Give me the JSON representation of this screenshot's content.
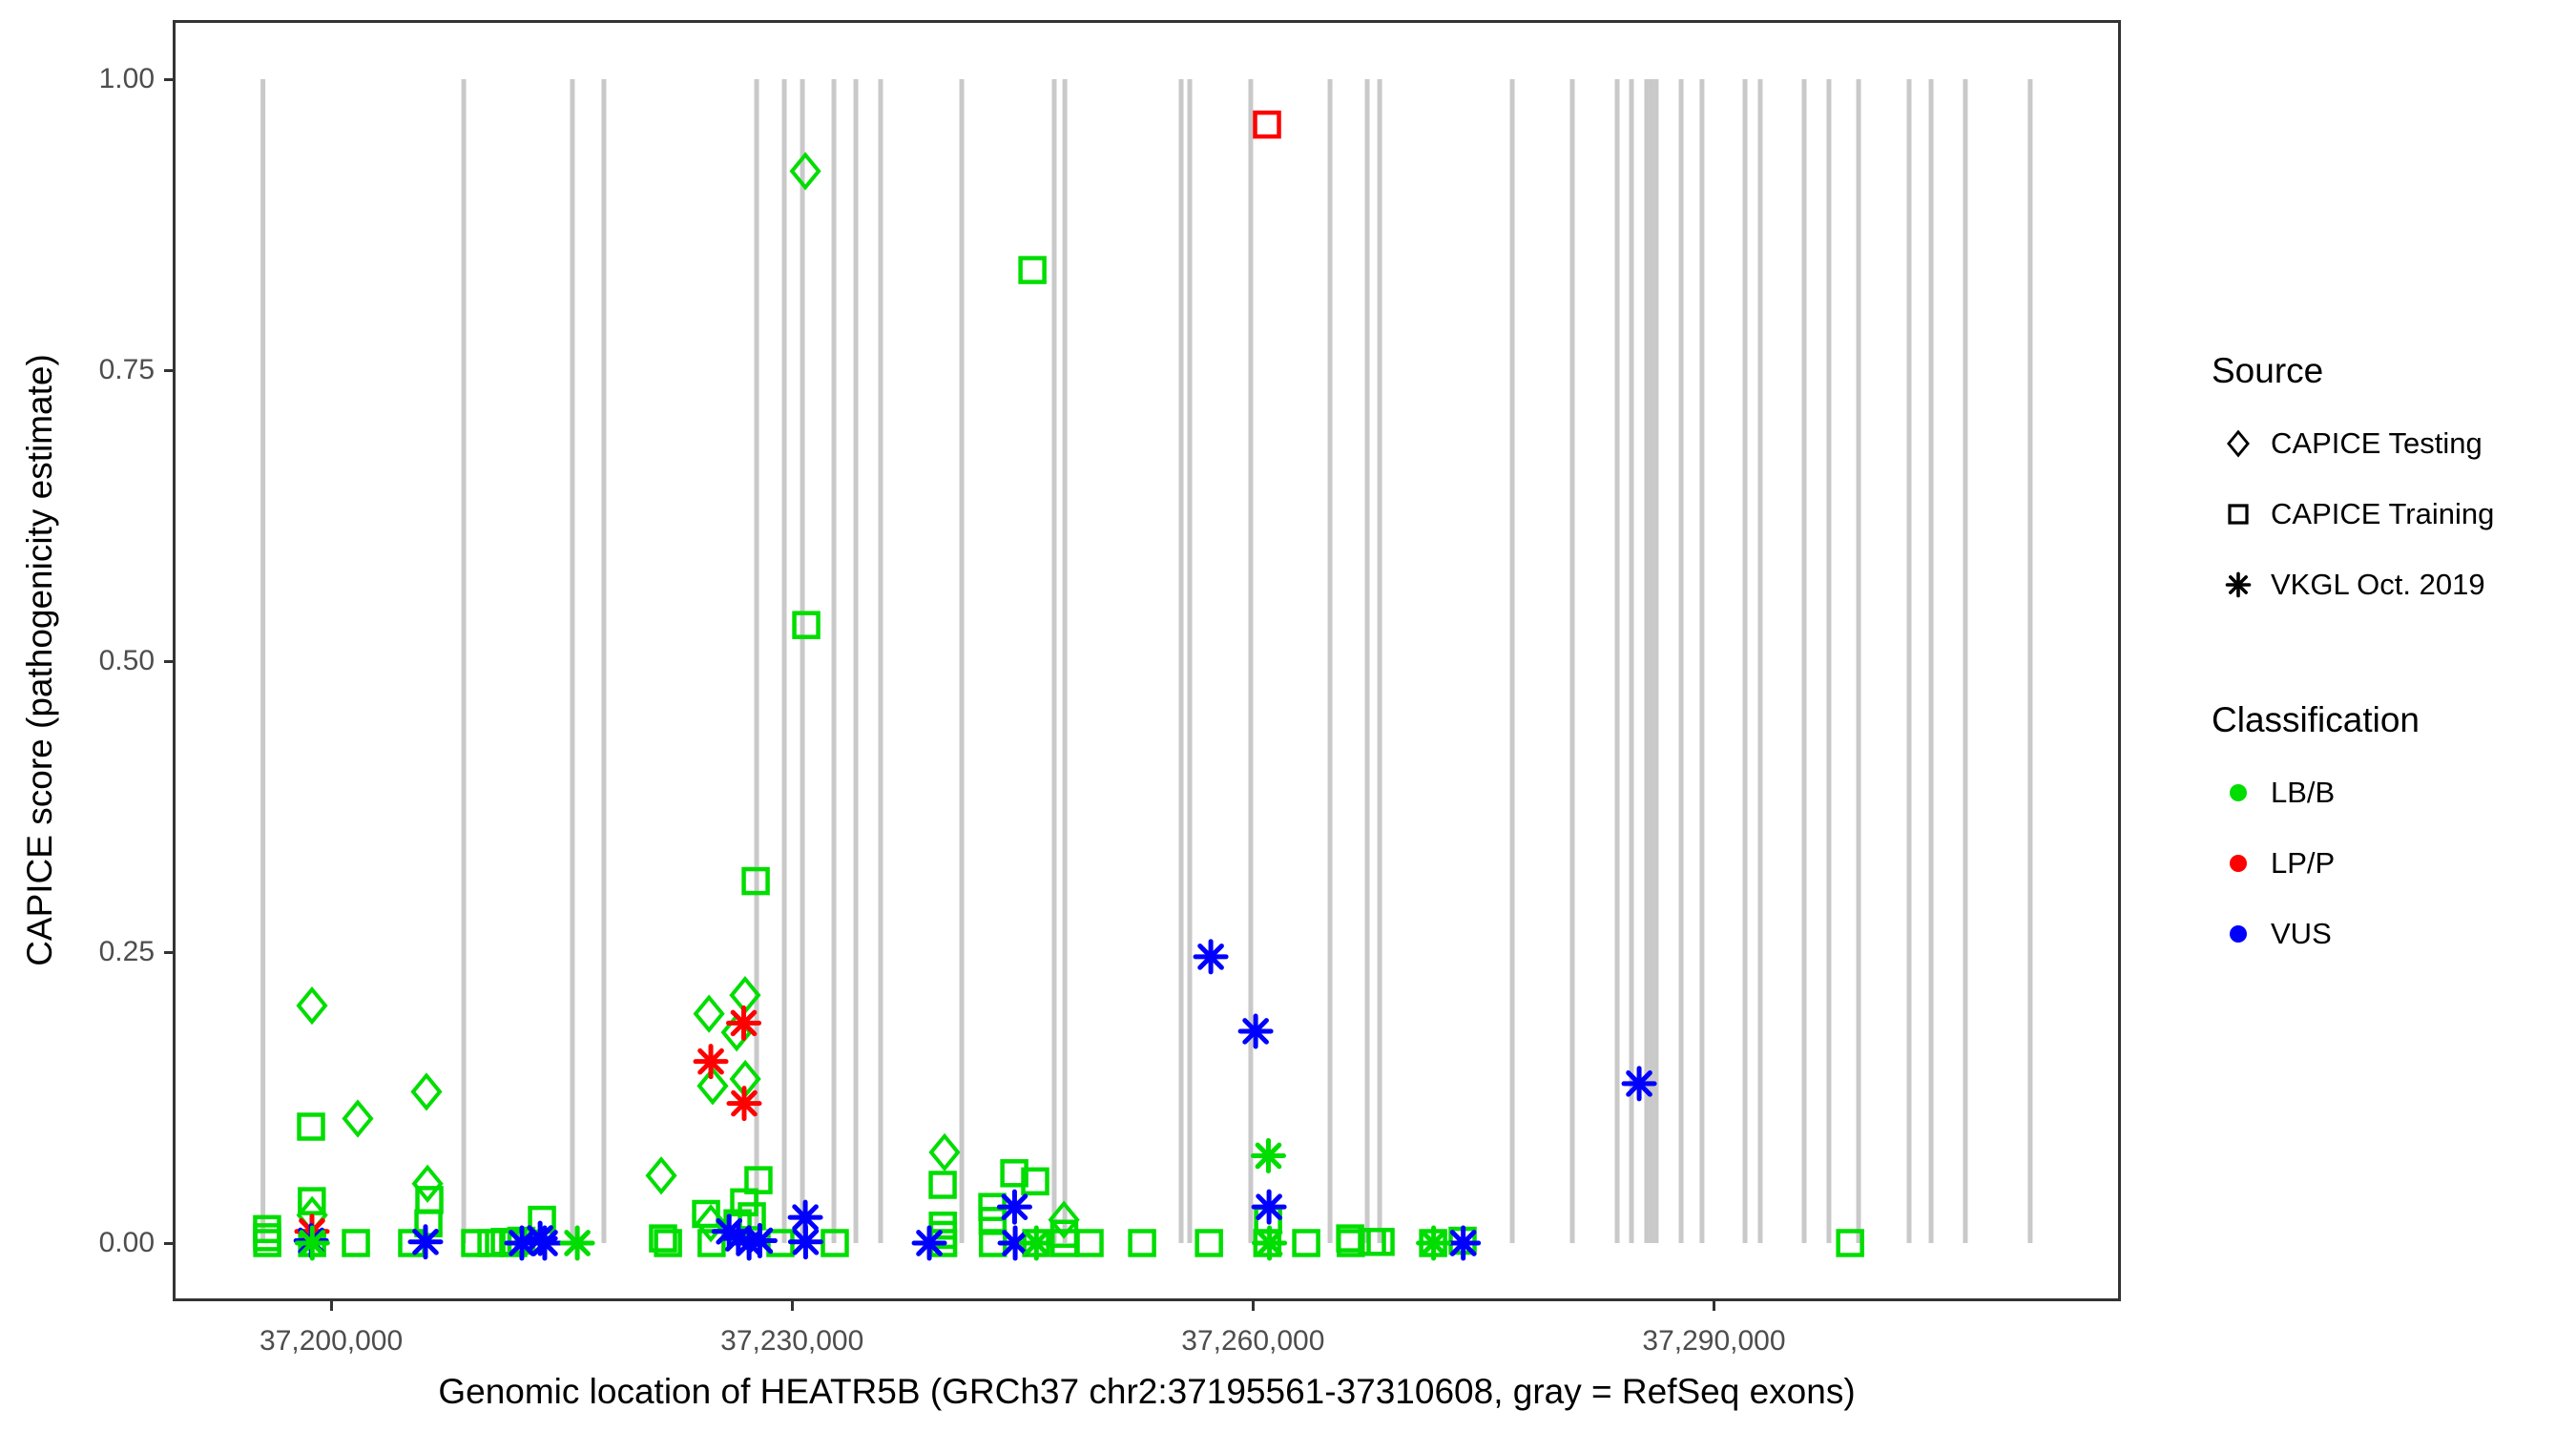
{
  "chart_data": {
    "type": "scatter",
    "title": "",
    "xlabel": "Genomic location of HEATR5B (GRCh37 chr2:37195561-37310608, gray = RefSeq exons)",
    "ylabel": "CAPICE score (pathogenicity estimate)",
    "x_domain": [
      37189809,
      37316360
    ],
    "y_domain": [
      0,
      1
    ],
    "grid": false,
    "x_ticks": [
      {
        "value": 37200000,
        "label": "37,200,000"
      },
      {
        "value": 37230000,
        "label": "37,230,000"
      },
      {
        "value": 37260000,
        "label": "37,260,000"
      },
      {
        "value": 37290000,
        "label": "37,290,000"
      }
    ],
    "y_ticks": [
      {
        "value": 0.0,
        "label": "0.00"
      },
      {
        "value": 0.25,
        "label": "0.25"
      },
      {
        "value": 0.5,
        "label": "0.50"
      },
      {
        "value": 0.75,
        "label": "0.75"
      },
      {
        "value": 1.0,
        "label": "1.00"
      }
    ],
    "exon_note": "gray vertical segments (RefSeq exons) span score 0 to 1",
    "exons": [
      37195560,
      37208630,
      37215700,
      37217750,
      37227690,
      37229490,
      37230670,
      37232720,
      37234150,
      37235760,
      37241040,
      37247060,
      37247750,
      37255320,
      37255880,
      37259850,
      37265010,
      37267430,
      37268240,
      37276870,
      37280780,
      37283700,
      37284630,
      37285620,
      37285930,
      37286240,
      37287860,
      37289220,
      37292020,
      37293010,
      37295870,
      37297480,
      37299410,
      37302700,
      37304130,
      37306360,
      37310580
    ],
    "point_keys": {
      "source": "legend Source group",
      "cls": "legend Classification group",
      "pos": "genomic position (bp)",
      "score": "CAPICE score"
    },
    "points": [
      {
        "source": "CAPICE Testing",
        "cls": "LB/B",
        "pos": 37198750,
        "score": 0.204
      },
      {
        "source": "CAPICE Testing",
        "cls": "LB/B",
        "pos": 37198760,
        "score": 0.024
      },
      {
        "source": "CAPICE Testing",
        "cls": "LB/B",
        "pos": 37201730,
        "score": 0.107
      },
      {
        "source": "CAPICE Testing",
        "cls": "LB/B",
        "pos": 37206200,
        "score": 0.13
      },
      {
        "source": "CAPICE Testing",
        "cls": "LB/B",
        "pos": 37206270,
        "score": 0.051
      },
      {
        "source": "CAPICE Testing",
        "cls": "LB/B",
        "pos": 37221480,
        "score": 0.058
      },
      {
        "source": "CAPICE Testing",
        "cls": "LB/B",
        "pos": 37224590,
        "score": 0.197
      },
      {
        "source": "CAPICE Testing",
        "cls": "LB/B",
        "pos": 37224830,
        "score": 0.135
      },
      {
        "source": "CAPICE Testing",
        "cls": "LB/B",
        "pos": 37224710,
        "score": 0.017
      },
      {
        "source": "CAPICE Testing",
        "cls": "LB/B",
        "pos": 37226390,
        "score": 0.181
      },
      {
        "source": "CAPICE Testing",
        "cls": "LB/B",
        "pos": 37226940,
        "score": 0.213
      },
      {
        "source": "CAPICE Testing",
        "cls": "LB/B",
        "pos": 37226950,
        "score": 0.141
      },
      {
        "source": "CAPICE Testing",
        "cls": "LB/B",
        "pos": 37230860,
        "score": 0.921
      },
      {
        "source": "CAPICE Testing",
        "cls": "LB/B",
        "pos": 37239920,
        "score": 0.078
      },
      {
        "source": "CAPICE Testing",
        "cls": "LB/B",
        "pos": 37247690,
        "score": 0.02
      },
      {
        "source": "CAPICE Training",
        "cls": "LB/B",
        "pos": 37195830,
        "score": 0.012
      },
      {
        "source": "CAPICE Training",
        "cls": "LB/B",
        "pos": 37195830,
        "score": 0.005
      },
      {
        "source": "CAPICE Training",
        "cls": "LB/B",
        "pos": 37195840,
        "score": 0.0
      },
      {
        "source": "CAPICE Training",
        "cls": "LB/B",
        "pos": 37198690,
        "score": 0.1
      },
      {
        "source": "CAPICE Training",
        "cls": "LB/B",
        "pos": 37198740,
        "score": 0.036
      },
      {
        "source": "CAPICE Training",
        "cls": "LB/B",
        "pos": 37198760,
        "score": 0.0
      },
      {
        "source": "CAPICE Training",
        "cls": "LB/B",
        "pos": 37201610,
        "score": 0.0
      },
      {
        "source": "CAPICE Training",
        "cls": "LB/B",
        "pos": 37205270,
        "score": 0.0
      },
      {
        "source": "CAPICE Training",
        "cls": "LB/B",
        "pos": 37206390,
        "score": 0.037
      },
      {
        "source": "CAPICE Training",
        "cls": "LB/B",
        "pos": 37206330,
        "score": 0.017
      },
      {
        "source": "CAPICE Training",
        "cls": "LB/B",
        "pos": 37209370,
        "score": 0.0
      },
      {
        "source": "CAPICE Training",
        "cls": "LB/B",
        "pos": 37210430,
        "score": 0.0
      },
      {
        "source": "CAPICE Training",
        "cls": "LB/B",
        "pos": 37211300,
        "score": 0.001
      },
      {
        "source": "CAPICE Training",
        "cls": "LB/B",
        "pos": 37211850,
        "score": 0.0
      },
      {
        "source": "CAPICE Training",
        "cls": "LB/B",
        "pos": 37212380,
        "score": 0.002
      },
      {
        "source": "CAPICE Training",
        "cls": "LB/B",
        "pos": 37213720,
        "score": 0.02
      },
      {
        "source": "CAPICE Training",
        "cls": "LB/B",
        "pos": 37221600,
        "score": 0.004
      },
      {
        "source": "CAPICE Training",
        "cls": "LB/B",
        "pos": 37221920,
        "score": 0.0
      },
      {
        "source": "CAPICE Training",
        "cls": "LB/B",
        "pos": 37224400,
        "score": 0.025
      },
      {
        "source": "CAPICE Training",
        "cls": "LB/B",
        "pos": 37224760,
        "score": 0.0
      },
      {
        "source": "CAPICE Training",
        "cls": "LB/B",
        "pos": 37226880,
        "score": 0.035
      },
      {
        "source": "CAPICE Training",
        "cls": "LB/B",
        "pos": 37226450,
        "score": 0.017
      },
      {
        "source": "CAPICE Training",
        "cls": "LB/B",
        "pos": 37227380,
        "score": 0.023
      },
      {
        "source": "CAPICE Training",
        "cls": "LB/B",
        "pos": 37227630,
        "score": 0.311
      },
      {
        "source": "CAPICE Training",
        "cls": "LB/B",
        "pos": 37227810,
        "score": 0.054
      },
      {
        "source": "CAPICE Training",
        "cls": "LB/B",
        "pos": 37229240,
        "score": 0.0
      },
      {
        "source": "CAPICE Training",
        "cls": "LB/B",
        "pos": 37230920,
        "score": 0.531
      },
      {
        "source": "CAPICE Training",
        "cls": "LB/B",
        "pos": 37232780,
        "score": 0.0
      },
      {
        "source": "CAPICE Training",
        "cls": "LB/B",
        "pos": 37239800,
        "score": 0.05
      },
      {
        "source": "CAPICE Training",
        "cls": "LB/B",
        "pos": 37239810,
        "score": 0.015
      },
      {
        "source": "CAPICE Training",
        "cls": "LB/B",
        "pos": 37239820,
        "score": 0.007
      },
      {
        "source": "CAPICE Training",
        "cls": "LB/B",
        "pos": 37239830,
        "score": 0.0
      },
      {
        "source": "CAPICE Training",
        "cls": "LB/B",
        "pos": 37243030,
        "score": 0.031
      },
      {
        "source": "CAPICE Training",
        "cls": "LB/B",
        "pos": 37243050,
        "score": 0.019
      },
      {
        "source": "CAPICE Training",
        "cls": "LB/B",
        "pos": 37243070,
        "score": 0.0
      },
      {
        "source": "CAPICE Training",
        "cls": "LB/B",
        "pos": 37244460,
        "score": 0.06
      },
      {
        "source": "CAPICE Training",
        "cls": "LB/B",
        "pos": 37245820,
        "score": 0.053
      },
      {
        "source": "CAPICE Training",
        "cls": "LB/B",
        "pos": 37245640,
        "score": 0.836
      },
      {
        "source": "CAPICE Training",
        "cls": "LB/B",
        "pos": 37245890,
        "score": 0.0
      },
      {
        "source": "CAPICE Training",
        "cls": "LB/B",
        "pos": 37247710,
        "score": 0.008
      },
      {
        "source": "CAPICE Training",
        "cls": "LB/B",
        "pos": 37247730,
        "score": 0.0
      },
      {
        "source": "CAPICE Training",
        "cls": "LB/B",
        "pos": 37249360,
        "score": 0.0
      },
      {
        "source": "CAPICE Training",
        "cls": "LB/B",
        "pos": 37252780,
        "score": 0.0
      },
      {
        "source": "CAPICE Training",
        "cls": "LB/B",
        "pos": 37257130,
        "score": 0.0
      },
      {
        "source": "CAPICE Training",
        "cls": "LB/B",
        "pos": 37260980,
        "score": 0.02
      },
      {
        "source": "CAPICE Training",
        "cls": "LB/B",
        "pos": 37260930,
        "score": 0.0
      },
      {
        "source": "CAPICE Training",
        "cls": "LB/B",
        "pos": 37263460,
        "score": 0.0
      },
      {
        "source": "CAPICE Training",
        "cls": "LB/B",
        "pos": 37266320,
        "score": 0.004
      },
      {
        "source": "CAPICE Training",
        "cls": "LB/B",
        "pos": 37266360,
        "score": 0.0
      },
      {
        "source": "CAPICE Training",
        "cls": "LB/B",
        "pos": 37267740,
        "score": 0.001
      },
      {
        "source": "CAPICE Training",
        "cls": "LB/B",
        "pos": 37268300,
        "score": 0.001
      },
      {
        "source": "CAPICE Training",
        "cls": "LB/B",
        "pos": 37271720,
        "score": 0.0
      },
      {
        "source": "CAPICE Training",
        "cls": "LB/B",
        "pos": 37273640,
        "score": 0.002
      },
      {
        "source": "CAPICE Training",
        "cls": "LB/B",
        "pos": 37298860,
        "score": 0.0
      },
      {
        "source": "CAPICE Training",
        "cls": "LP/P",
        "pos": 37260910,
        "score": 0.961
      },
      {
        "source": "VKGL Oct. 2019",
        "cls": "LP/P",
        "pos": 37198750,
        "score": 0.01
      },
      {
        "source": "VKGL Oct. 2019",
        "cls": "LP/P",
        "pos": 37224710,
        "score": 0.156
      },
      {
        "source": "VKGL Oct. 2019",
        "cls": "LP/P",
        "pos": 37226850,
        "score": 0.189
      },
      {
        "source": "VKGL Oct. 2019",
        "cls": "LP/P",
        "pos": 37226880,
        "score": 0.12
      },
      {
        "source": "VKGL Oct. 2019",
        "cls": "VUS",
        "pos": 37198700,
        "score": 0.002
      },
      {
        "source": "VKGL Oct. 2019",
        "cls": "VUS",
        "pos": 37206140,
        "score": 0.001
      },
      {
        "source": "VKGL Oct. 2019",
        "cls": "VUS",
        "pos": 37212410,
        "score": 0.0
      },
      {
        "source": "VKGL Oct. 2019",
        "cls": "VUS",
        "pos": 37213600,
        "score": 0.004
      },
      {
        "source": "VKGL Oct. 2019",
        "cls": "VUS",
        "pos": 37213900,
        "score": 0.0
      },
      {
        "source": "VKGL Oct. 2019",
        "cls": "VUS",
        "pos": 37225900,
        "score": 0.01
      },
      {
        "source": "VKGL Oct. 2019",
        "cls": "VUS",
        "pos": 37226500,
        "score": 0.004
      },
      {
        "source": "VKGL Oct. 2019",
        "cls": "VUS",
        "pos": 37227200,
        "score": 0.0
      },
      {
        "source": "VKGL Oct. 2019",
        "cls": "VUS",
        "pos": 37227900,
        "score": 0.002
      },
      {
        "source": "VKGL Oct. 2019",
        "cls": "VUS",
        "pos": 37230860,
        "score": 0.022
      },
      {
        "source": "VKGL Oct. 2019",
        "cls": "VUS",
        "pos": 37230880,
        "score": 0.001
      },
      {
        "source": "VKGL Oct. 2019",
        "cls": "VUS",
        "pos": 37238930,
        "score": 0.0
      },
      {
        "source": "VKGL Oct. 2019",
        "cls": "VUS",
        "pos": 37244480,
        "score": 0.031
      },
      {
        "source": "VKGL Oct. 2019",
        "cls": "VUS",
        "pos": 37244520,
        "score": 0.0
      },
      {
        "source": "VKGL Oct. 2019",
        "cls": "VUS",
        "pos": 37257250,
        "score": 0.246
      },
      {
        "source": "VKGL Oct. 2019",
        "cls": "VUS",
        "pos": 37260170,
        "score": 0.182
      },
      {
        "source": "VKGL Oct. 2019",
        "cls": "VUS",
        "pos": 37261040,
        "score": 0.031
      },
      {
        "source": "VKGL Oct. 2019",
        "cls": "VUS",
        "pos": 37273680,
        "score": 0.0
      },
      {
        "source": "VKGL Oct. 2019",
        "cls": "VUS",
        "pos": 37285130,
        "score": 0.137
      },
      {
        "source": "VKGL Oct. 2019",
        "cls": "LB/B",
        "pos": 37198770,
        "score": 0.0
      },
      {
        "source": "VKGL Oct. 2019",
        "cls": "LB/B",
        "pos": 37216020,
        "score": 0.0
      },
      {
        "source": "VKGL Oct. 2019",
        "cls": "LB/B",
        "pos": 37245900,
        "score": 0.0
      },
      {
        "source": "VKGL Oct. 2019",
        "cls": "LB/B",
        "pos": 37261000,
        "score": 0.075
      },
      {
        "source": "VKGL Oct. 2019",
        "cls": "LB/B",
        "pos": 37261070,
        "score": 0.0
      },
      {
        "source": "VKGL Oct. 2019",
        "cls": "LB/B",
        "pos": 37271750,
        "score": 0.0
      }
    ]
  },
  "legend": {
    "source": {
      "title": "Source",
      "items": [
        {
          "label": "CAPICE Testing",
          "marker": "diamond"
        },
        {
          "label": "CAPICE Training",
          "marker": "square"
        },
        {
          "label": "VKGL Oct. 2019",
          "marker": "asterisk"
        }
      ]
    },
    "classification": {
      "title": "Classification",
      "items": [
        {
          "label": "LB/B",
          "color": "#00dd00"
        },
        {
          "label": "LP/P",
          "color": "#ff0000"
        },
        {
          "label": "VUS",
          "color": "#0000ff"
        }
      ]
    }
  },
  "style": {
    "class_colors": {
      "LB/B": "#00dd00",
      "LP/P": "#ff0000",
      "VUS": "#0000ff"
    },
    "source_markers": {
      "CAPICE Testing": "diamond",
      "CAPICE Training": "square",
      "VKGL Oct. 2019": "asterisk"
    },
    "exon_color": "#c9c9c9",
    "panel_border_color": "#333333",
    "tick_text_color": "#4d4d4d",
    "legend_symbol_color": "#000000"
  }
}
